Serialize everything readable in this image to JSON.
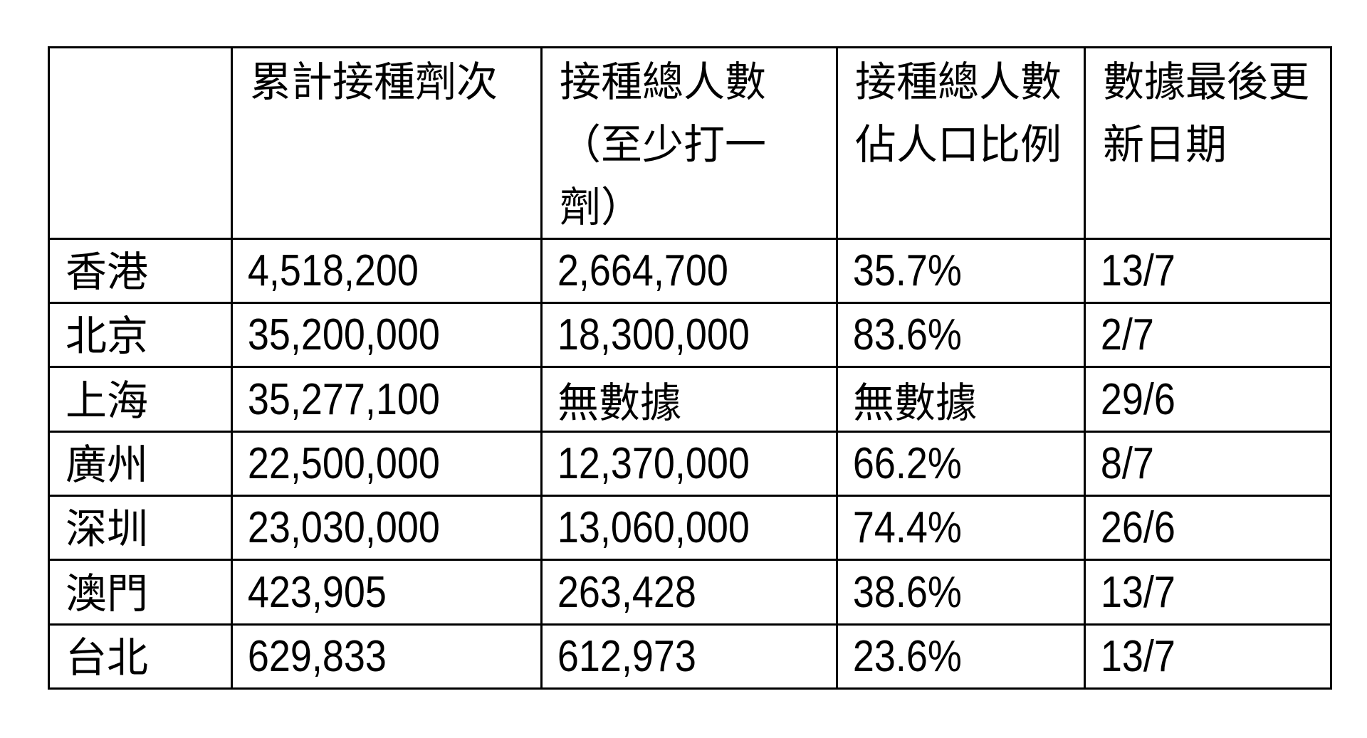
{
  "colors": {
    "border": "#000000",
    "background": "#ffffff",
    "text": "#000000"
  },
  "table": {
    "corner_label": "",
    "columns": [
      "累計接種劑次",
      "接種總人數\n（至少打一\n劑）",
      "接種總人數\n佔人口比例",
      "數據最後更\n新日期"
    ],
    "rows": [
      {
        "city": "香港",
        "doses": "4,518,200",
        "people": "2,664,700",
        "pct": "35.7%",
        "updated": "13/7"
      },
      {
        "city": "北京",
        "doses": "35,200,000",
        "people": "18,300,000",
        "pct": "83.6%",
        "updated": "2/7"
      },
      {
        "city": "上海",
        "doses": "35,277,100",
        "people": "無數據",
        "pct": "無數據",
        "updated": "29/6"
      },
      {
        "city": "廣州",
        "doses": "22,500,000",
        "people": "12,370,000",
        "pct": "66.2%",
        "updated": "8/7"
      },
      {
        "city": "深圳",
        "doses": "23,030,000",
        "people": "13,060,000",
        "pct": "74.4%",
        "updated": "26/6"
      },
      {
        "city": "澳門",
        "doses": "423,905",
        "people": "263,428",
        "pct": "38.6%",
        "updated": "13/7"
      },
      {
        "city": "台北",
        "doses": "629,833",
        "people": "612,973",
        "pct": "23.6%",
        "updated": "13/7"
      }
    ]
  }
}
